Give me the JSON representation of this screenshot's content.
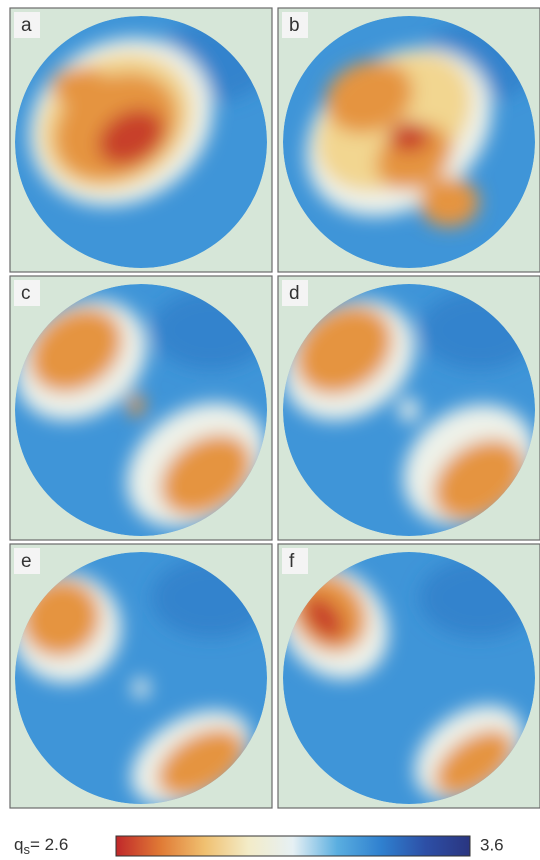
{
  "panels": [
    {
      "label": "a"
    },
    {
      "label": "b"
    },
    {
      "label": "c"
    },
    {
      "label": "d"
    },
    {
      "label": "e"
    },
    {
      "label": "f"
    }
  ],
  "colorbar": {
    "symbol": "q",
    "subscript": "s",
    "equals": "=",
    "min": 2.6,
    "max": 3.6,
    "colors": [
      "#c0282a",
      "#e07a35",
      "#f0c070",
      "#f3ecc8",
      "#e6f0f4",
      "#5aaee0",
      "#2f80cf",
      "#2d4fa6",
      "#2a3580"
    ]
  }
}
